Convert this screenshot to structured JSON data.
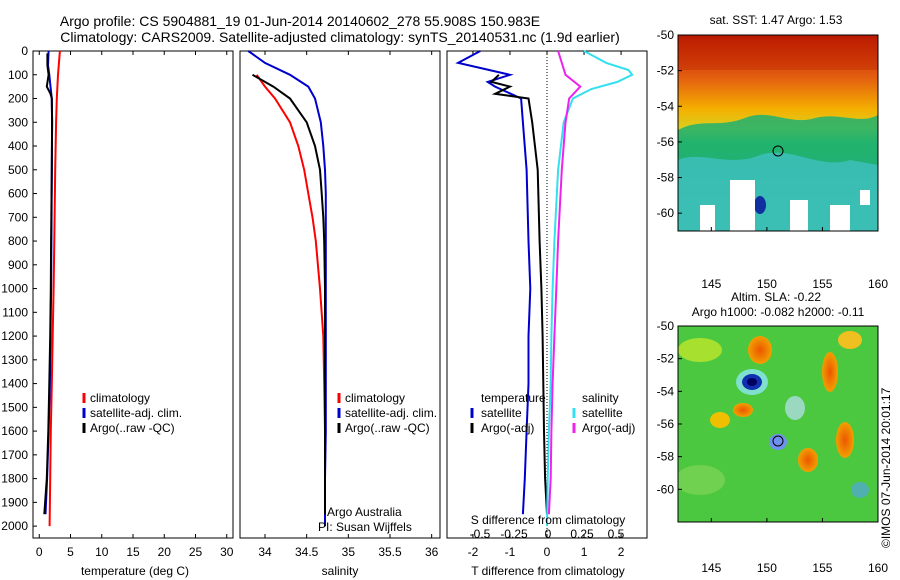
{
  "header": {
    "title_line1": "Argo profile: CS 5904881_19 01-Jun-2014 20140602_278 55.908S 150.983E",
    "title_line2": "Climatology: CARS2009. Satellite-adjusted climatology: synTS_20140531.nc (1.9d earlier)"
  },
  "colors": {
    "climatology": "#ff0000",
    "satellite": "#0000cc",
    "argo": "#000000",
    "salinity_satellite": "#33e0f0",
    "salinity_argo": "#ee22ee"
  },
  "chart_data": [
    {
      "type": "line",
      "id": "temperature",
      "xlabel": "temperature (deg C)",
      "xlim": [
        -1,
        31
      ],
      "xticks": [
        0,
        5,
        10,
        15,
        20,
        25,
        30
      ],
      "ylim": [
        0,
        2050
      ],
      "yticks": [
        0,
        100,
        200,
        300,
        400,
        500,
        600,
        700,
        800,
        900,
        1000,
        1100,
        1200,
        1300,
        1400,
        1500,
        1600,
        1700,
        1800,
        1900,
        2000
      ],
      "legend": [
        "climatology",
        "satellite-adj. clim.",
        "Argo(..raw -QC)"
      ],
      "series": [
        {
          "name": "climatology",
          "color": "#ff0000",
          "depth": [
            0,
            100,
            200,
            300,
            500,
            800,
            1000,
            1200,
            1400,
            1600,
            1800,
            2000
          ],
          "values": [
            3.3,
            3.0,
            2.8,
            2.7,
            2.55,
            2.4,
            2.3,
            2.15,
            2.0,
            1.85,
            1.75,
            1.65
          ]
        },
        {
          "name": "satellite-adj. clim.",
          "color": "#0000cc",
          "depth": [
            0,
            60,
            100,
            150,
            200,
            300,
            500,
            800,
            1000,
            1200,
            1400,
            1600,
            1800,
            1950
          ],
          "values": [
            1.5,
            1.4,
            1.6,
            1.8,
            2.0,
            2.05,
            2.0,
            1.95,
            1.9,
            1.8,
            1.7,
            1.5,
            1.25,
            1.0
          ]
        },
        {
          "name": "Argo(..raw -QC)",
          "color": "#000000",
          "depth": [
            10,
            60,
            100,
            150,
            180,
            200,
            300,
            500,
            800,
            1000,
            1200,
            1400,
            1600,
            1800,
            1950
          ],
          "values": [
            1.3,
            1.3,
            1.5,
            1.2,
            1.8,
            2.0,
            2.05,
            2.0,
            1.9,
            1.85,
            1.75,
            1.6,
            1.45,
            1.2,
            0.8
          ]
        }
      ]
    },
    {
      "type": "line",
      "id": "salinity",
      "xlabel": "salinity",
      "xlim": [
        33.7,
        36.1
      ],
      "xticks": [
        34,
        34.5,
        35,
        35.5,
        36
      ],
      "ylim": [
        0,
        2050
      ],
      "legend": [
        "climatology",
        "satellite-adj. clim.",
        "Argo(..raw -QC)"
      ],
      "annotation": [
        "Argo Australia",
        "PI: Susan Wijffels"
      ],
      "series": [
        {
          "name": "climatology",
          "color": "#ff0000",
          "depth": [
            100,
            150,
            200,
            300,
            400,
            500,
            600,
            700,
            800,
            1000,
            1200,
            1400,
            1600,
            1800,
            2000
          ],
          "values": [
            33.9,
            34.0,
            34.12,
            34.3,
            34.4,
            34.47,
            34.52,
            34.57,
            34.61,
            34.66,
            34.7,
            34.71,
            34.72,
            34.72,
            34.72
          ]
        },
        {
          "name": "satellite-adj. clim.",
          "color": "#0000cc",
          "depth": [
            0,
            50,
            100,
            150,
            200,
            300,
            400,
            500,
            600,
            700,
            800,
            1000,
            1200,
            1400,
            1600,
            1800,
            2000
          ],
          "values": [
            33.8,
            34.0,
            34.3,
            34.52,
            34.6,
            34.67,
            34.7,
            34.72,
            34.73,
            34.73,
            34.73,
            34.73,
            34.73,
            34.73,
            34.73,
            34.72,
            34.72
          ]
        },
        {
          "name": "Argo(..raw -QC)",
          "color": "#000000",
          "depth": [
            100,
            150,
            200,
            300,
            400,
            500,
            600,
            700,
            800,
            1000,
            1200,
            1400,
            1600,
            1800,
            1950
          ],
          "values": [
            33.85,
            34.1,
            34.3,
            34.5,
            34.6,
            34.66,
            34.68,
            34.7,
            34.71,
            34.72,
            34.72,
            34.72,
            34.72,
            34.72,
            34.72
          ]
        }
      ]
    },
    {
      "type": "line",
      "id": "difference",
      "xlabel": "T difference from climatology",
      "xlabel_top": "S difference from climatology",
      "xlim": [
        -2.7,
        2.7
      ],
      "xticks": [
        -2,
        -1,
        0,
        1,
        2
      ],
      "top_xticks": [
        "-0.5",
        "-0.25",
        "0",
        "0.25",
        "0.5"
      ],
      "ylim": [
        0,
        2050
      ],
      "legend_t_title": "temperature",
      "legend_s_title": "salinity",
      "legend_t": [
        "satellite",
        "Argo(-adj)"
      ],
      "legend_s": [
        "satellite",
        "Argo(-adj)"
      ],
      "series": [
        {
          "name": "satellite",
          "group": "T",
          "color": "#0000cc",
          "depth": [
            0,
            50,
            100,
            130,
            150,
            200,
            300,
            500,
            800,
            1000,
            1200,
            1400,
            1600,
            1800,
            1950
          ],
          "values": [
            -1.8,
            -2.4,
            -1.0,
            -1.6,
            -1.4,
            -0.7,
            -0.65,
            -0.55,
            -0.5,
            -0.45,
            -0.5,
            -0.5,
            -0.55,
            -0.6,
            -0.65
          ]
        },
        {
          "name": "Argo(-adj)",
          "group": "T",
          "color": "#000000",
          "depth": [
            100,
            130,
            150,
            180,
            200,
            300,
            500,
            800,
            1000,
            1200,
            1400,
            1600,
            1800,
            1950
          ],
          "values": [
            -1.3,
            -1.5,
            -1.0,
            -1.4,
            -0.5,
            -0.4,
            -0.25,
            -0.2,
            -0.15,
            -0.12,
            -0.1,
            -0.08,
            -0.05,
            0
          ]
        },
        {
          "name": "satellite",
          "group": "S",
          "color": "#33e0f0",
          "depth": [
            0,
            50,
            80,
            100,
            130,
            160,
            200,
            300,
            500,
            800,
            1000,
            1200,
            1400,
            1600,
            1800,
            2000
          ],
          "values": [
            1.0,
            1.6,
            2.2,
            2.3,
            1.9,
            1.2,
            0.7,
            0.45,
            0.3,
            0.2,
            0.15,
            0.12,
            0.1,
            0.05,
            0.02,
            0
          ]
        },
        {
          "name": "Argo(-adj)",
          "group": "S",
          "color": "#ee22ee",
          "depth": [
            0,
            100,
            150,
            200,
            300,
            500,
            800,
            1000,
            1200,
            1400,
            1600,
            1800,
            1950
          ],
          "values": [
            0.3,
            0.5,
            0.9,
            0.6,
            0.5,
            0.4,
            0.3,
            0.25,
            0.2,
            0.15,
            0.12,
            0.1,
            0.05
          ]
        }
      ]
    },
    {
      "type": "heatmap",
      "id": "sst_map",
      "title": "sat. SST: 1.47  Argo: 1.53",
      "xlim": [
        142,
        160
      ],
      "ylim": [
        -61,
        -50
      ],
      "xticks": [
        145,
        150,
        155,
        160
      ],
      "yticks": [
        -50,
        -52,
        -54,
        -56,
        -58,
        -60
      ],
      "marker": {
        "lon": 151,
        "lat": -56
      }
    },
    {
      "type": "heatmap",
      "id": "sla_map",
      "title_line1": "Altim. SLA: -0.22",
      "title_line2": "Argo h1000: -0.082 h2000: -0.11",
      "xlim": [
        142,
        160
      ],
      "ylim": [
        -62,
        -50
      ],
      "xticks": [
        145,
        150,
        155,
        160
      ],
      "yticks": [
        -50,
        -52,
        -54,
        -56,
        -58,
        -60
      ],
      "marker": {
        "lon": 151,
        "lat": -56
      }
    }
  ],
  "footer": {
    "credit": "©IMOS 07-Jun-2014 20:01:17"
  }
}
